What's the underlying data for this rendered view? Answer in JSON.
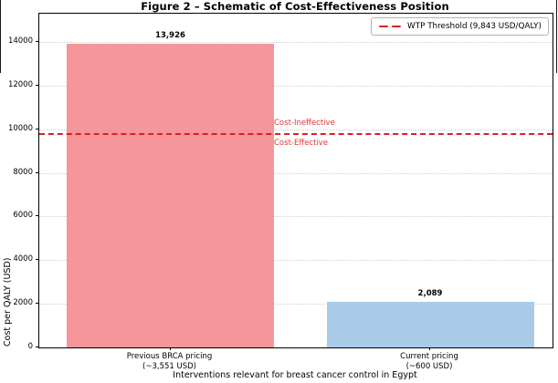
{
  "figure": {
    "title": "Figure 2 – Schematic of Cost-Effectiveness Position"
  },
  "chart_data": {
    "type": "bar",
    "title": "Figure 2 – Schematic of Cost-Effectiveness Position",
    "xlabel": "Interventions relevant for breast cancer control in Egypt",
    "ylabel": "Cost per QALY (USD)",
    "ylim": [
      0,
      15300
    ],
    "yticks": [
      0,
      2000,
      4000,
      6000,
      8000,
      10000,
      12000,
      14000
    ],
    "grid": "horizontal-dotted",
    "legend_position": "upper right",
    "categories": [
      "Previous BRCA pricing\n(~3,551 USD)",
      "Current pricing\n(~600 USD)"
    ],
    "values": [
      13926,
      2089
    ],
    "value_labels": [
      "13,926",
      "2,089"
    ],
    "bar_colors": [
      "#f4969a",
      "#a9cbe8"
    ],
    "threshold": {
      "value": 9843,
      "label": "WTP Threshold (9,843 USD/QALY)",
      "color": "#e01e1e",
      "style": "dashed"
    },
    "annotations": [
      {
        "text": "Cost-Ineffective",
        "position": "above-threshold",
        "color": "#e03535"
      },
      {
        "text": "Cost-Effective",
        "position": "below-threshold",
        "color": "#e03535"
      }
    ]
  }
}
